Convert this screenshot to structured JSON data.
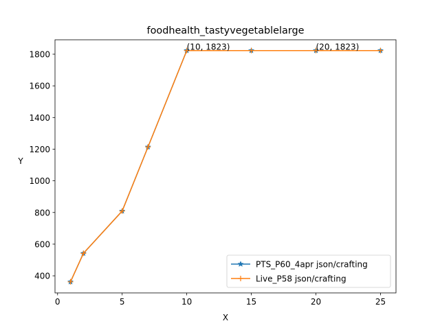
{
  "chart_data": {
    "type": "line",
    "title": "foodhealth_tastyvegetablelarge",
    "xlabel": "X",
    "ylabel": "Y",
    "xlim": [
      -0.2,
      26.2
    ],
    "ylim": [
      292,
      1891
    ],
    "xticks": [
      0,
      5,
      10,
      15,
      20,
      25
    ],
    "yticks": [
      400,
      600,
      800,
      1000,
      1200,
      1400,
      1600,
      1800
    ],
    "grid": false,
    "legend_position": "lower-right",
    "series": [
      {
        "name": "PTS_P60_4apr json/crafting",
        "color": "#1f77b4",
        "marker": "star",
        "x": [
          1,
          2,
          5,
          7,
          10,
          15,
          20,
          25
        ],
        "y": [
          362,
          542,
          809,
          1214,
          1823,
          1823,
          1823,
          1823
        ]
      },
      {
        "name": "Live_P58 json/crafting",
        "color": "#ff7f0e",
        "marker": "plus",
        "x": [
          1,
          2,
          5,
          7,
          10,
          15,
          20,
          25
        ],
        "y": [
          362,
          542,
          809,
          1214,
          1823,
          1823,
          1823,
          1823
        ]
      }
    ],
    "annotations": [
      {
        "text": "(10, 1823)",
        "x": 10,
        "y": 1823
      },
      {
        "text": "(20, 1823)",
        "x": 20,
        "y": 1823
      }
    ]
  }
}
